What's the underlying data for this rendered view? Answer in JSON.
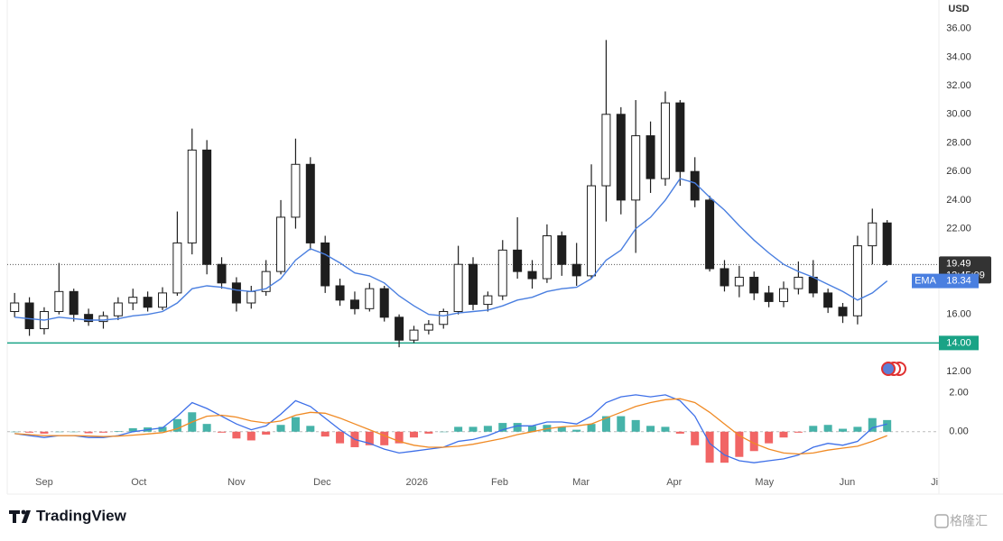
{
  "chart_data": {
    "type": "candlestick",
    "currency": "USD",
    "brand": "TradingView",
    "watermark": "格隆汇",
    "xlim": [
      -0.5,
      62.5
    ],
    "xticks": [
      {
        "value": 2,
        "label": "Sep"
      },
      {
        "value": 8.4,
        "label": "Oct"
      },
      {
        "value": 15,
        "label": "Nov"
      },
      {
        "value": 20.8,
        "label": "Dec"
      },
      {
        "value": 27.2,
        "label": "2026"
      },
      {
        "value": 32.8,
        "label": "Feb"
      },
      {
        "value": 38.3,
        "label": "Mar"
      },
      {
        "value": 44.6,
        "label": "Apr"
      },
      {
        "value": 50.7,
        "label": "May"
      },
      {
        "value": 56.3,
        "label": "Jun"
      },
      {
        "value": 62.2,
        "label": "Ji"
      }
    ],
    "ylim": [
      11.5,
      38
    ],
    "yticks": [
      {
        "value": 36,
        "label": "36.00"
      },
      {
        "value": 34,
        "label": "34.00"
      },
      {
        "value": 32,
        "label": "32.00"
      },
      {
        "value": 30,
        "label": "30.00"
      },
      {
        "value": 28,
        "label": "28.00"
      },
      {
        "value": 26,
        "label": "26.00"
      },
      {
        "value": 24,
        "label": "24.00"
      },
      {
        "value": 22,
        "label": "22.00"
      },
      {
        "value": 16,
        "label": "16.00"
      },
      {
        "value": 12,
        "label": "12.00"
      }
    ],
    "open": [
      16.2,
      16.8,
      15.0,
      16.2,
      17.6,
      16.0,
      15.5,
      15.9,
      16.8,
      17.2,
      16.5,
      17.5,
      21.0,
      27.5,
      19.5,
      18.2,
      16.8,
      17.6,
      19.0,
      22.8,
      26.5,
      21.0,
      18.0,
      17.0,
      16.4,
      17.8,
      15.8,
      14.2,
      14.9,
      15.3,
      16.2,
      19.5,
      16.7,
      17.3,
      20.5,
      19.0,
      18.5,
      21.5,
      19.5,
      18.7,
      25.0,
      30.0,
      24.0,
      28.5,
      25.5,
      30.8,
      26.0,
      24.0,
      19.2,
      18.0,
      18.6,
      17.5,
      16.9,
      17.8,
      18.6,
      17.5,
      16.5,
      15.9,
      20.8,
      22.4
    ],
    "high": [
      17.5,
      17.2,
      16.5,
      19.6,
      17.8,
      16.4,
      16.2,
      17.2,
      17.8,
      17.6,
      17.9,
      23.2,
      29.0,
      28.2,
      20.0,
      18.6,
      18.0,
      19.8,
      24.0,
      28.3,
      27.0,
      21.5,
      18.5,
      17.6,
      18.2,
      18.0,
      16.0,
      15.2,
      15.6,
      16.4,
      20.8,
      20.0,
      17.6,
      21.2,
      22.8,
      19.8,
      22.3,
      21.8,
      21.0,
      26.5,
      35.2,
      30.5,
      31.0,
      29.5,
      31.6,
      31.0,
      27.0,
      24.3,
      19.8,
      19.4,
      19.0,
      18.0,
      18.3,
      19.7,
      19.8,
      17.8,
      16.8,
      21.5,
      23.4,
      22.6
    ],
    "low": [
      15.8,
      14.5,
      14.6,
      16.0,
      15.5,
      15.2,
      15.0,
      15.6,
      16.3,
      16.2,
      16.3,
      17.3,
      20.2,
      18.8,
      17.8,
      16.2,
      16.4,
      17.3,
      18.8,
      22.0,
      20.5,
      17.5,
      16.6,
      16.0,
      16.2,
      15.5,
      13.7,
      14.0,
      14.6,
      15.0,
      16.0,
      16.3,
      16.2,
      17.0,
      18.5,
      17.8,
      18.2,
      18.7,
      18.0,
      18.5,
      22.5,
      23.0,
      20.3,
      24.5,
      25.0,
      25.0,
      23.5,
      19.0,
      17.6,
      17.2,
      17.0,
      16.5,
      16.5,
      17.4,
      17.2,
      16.1,
      15.4,
      15.3,
      19.5,
      19.4
    ],
    "close": [
      16.8,
      15.0,
      16.2,
      17.6,
      16.0,
      15.5,
      15.9,
      16.8,
      17.2,
      16.5,
      17.5,
      21.0,
      27.5,
      19.5,
      18.2,
      16.8,
      17.6,
      19.0,
      22.8,
      26.5,
      21.0,
      18.0,
      17.0,
      16.4,
      17.8,
      15.8,
      14.2,
      14.9,
      15.3,
      16.2,
      19.5,
      16.7,
      17.3,
      20.5,
      19.0,
      18.5,
      21.5,
      19.5,
      18.7,
      25.0,
      30.0,
      24.0,
      28.5,
      25.5,
      30.8,
      26.0,
      24.0,
      19.2,
      18.0,
      18.6,
      17.5,
      16.9,
      17.8,
      18.6,
      17.5,
      16.5,
      15.9,
      20.8,
      22.4,
      19.49
    ],
    "up_color": "#ffffff",
    "down_color": "#1e1e1e",
    "ema": {
      "name": "EMA",
      "color": "#4a7fe0",
      "last_label": "18.34",
      "values": [
        15.8,
        15.7,
        15.6,
        15.8,
        15.7,
        15.6,
        15.6,
        15.7,
        15.9,
        16.0,
        16.2,
        16.8,
        17.8,
        18.0,
        17.9,
        17.7,
        17.6,
        17.8,
        18.5,
        19.8,
        20.6,
        20.2,
        19.6,
        18.9,
        18.7,
        18.2,
        17.3,
        16.6,
        16.0,
        15.9,
        16.1,
        16.2,
        16.3,
        16.6,
        17.0,
        17.2,
        17.6,
        17.8,
        17.9,
        18.5,
        19.8,
        20.5,
        22.0,
        22.8,
        24.0,
        25.5,
        25.2,
        24.2,
        23.3,
        22.2,
        21.2,
        20.3,
        19.5,
        19.0,
        18.6,
        18.1,
        17.6,
        17.0,
        17.5,
        18.34
      ]
    },
    "last_price": {
      "value": 19.49,
      "label": "19.49",
      "time": "12:45:09"
    },
    "hline": {
      "value": 14,
      "label": "14.00",
      "color": "#1aa386"
    },
    "macd": {
      "ylim": [
        -2.15,
        2.5
      ],
      "yticks": [
        {
          "value": 2,
          "label": "2.00"
        },
        {
          "value": 0,
          "label": "0.00"
        }
      ],
      "macd_line": {
        "color": "#3d6fe8",
        "values": [
          -0.1,
          -0.2,
          -0.3,
          -0.2,
          -0.2,
          -0.3,
          -0.3,
          -0.2,
          0,
          0.1,
          0.2,
          0.8,
          1.5,
          1.2,
          0.8,
          0.4,
          0.1,
          0.3,
          0.9,
          1.6,
          1.3,
          0.7,
          0.1,
          -0.4,
          -0.6,
          -0.9,
          -1.1,
          -1.0,
          -0.9,
          -0.8,
          -0.5,
          -0.4,
          -0.2,
          0.1,
          0.3,
          0.3,
          0.5,
          0.5,
          0.4,
          0.8,
          1.5,
          1.8,
          1.9,
          1.8,
          1.9,
          1.6,
          0.8,
          -0.6,
          -1.2,
          -1.5,
          -1.6,
          -1.5,
          -1.4,
          -1.2,
          -0.8,
          -0.6,
          -0.7,
          -0.5,
          0.2,
          0.4
        ]
      },
      "signal_line": {
        "color": "#f08a24",
        "values": [
          -0.1,
          -0.15,
          -0.2,
          -0.2,
          -0.2,
          -0.22,
          -0.25,
          -0.23,
          -0.18,
          -0.12,
          -0.05,
          0.15,
          0.5,
          0.8,
          0.85,
          0.75,
          0.55,
          0.45,
          0.55,
          0.85,
          1.0,
          0.95,
          0.7,
          0.4,
          0.1,
          -0.2,
          -0.5,
          -0.7,
          -0.8,
          -0.8,
          -0.75,
          -0.65,
          -0.5,
          -0.35,
          -0.15,
          0,
          0.15,
          0.25,
          0.3,
          0.4,
          0.7,
          1.0,
          1.3,
          1.5,
          1.65,
          1.7,
          1.5,
          1.0,
          0.4,
          -0.2,
          -0.6,
          -0.9,
          -1.1,
          -1.15,
          -1.1,
          -0.95,
          -0.85,
          -0.75,
          -0.5,
          -0.2
        ]
      },
      "histogram": {
        "pos_color": "#26a69a",
        "neg_color": "#ef4a4a",
        "values": [
          0,
          -0.05,
          -0.1,
          0,
          0,
          -0.08,
          -0.05,
          0.03,
          0.18,
          0.22,
          0.25,
          0.65,
          1.0,
          0.4,
          -0.05,
          -0.35,
          -0.45,
          -0.15,
          0.35,
          0.75,
          0.3,
          -0.25,
          -0.6,
          -0.8,
          -0.7,
          -0.7,
          -0.6,
          -0.3,
          -0.1,
          0,
          0.25,
          0.25,
          0.3,
          0.45,
          0.45,
          0.3,
          0.35,
          0.25,
          0.1,
          0.4,
          0.8,
          0.8,
          0.6,
          0.3,
          0.25,
          -0.1,
          -0.7,
          -1.6,
          -1.6,
          -1.3,
          -1.0,
          -0.6,
          -0.3,
          -0.05,
          0.3,
          0.35,
          0.15,
          0.25,
          0.7,
          0.6
        ]
      }
    }
  }
}
